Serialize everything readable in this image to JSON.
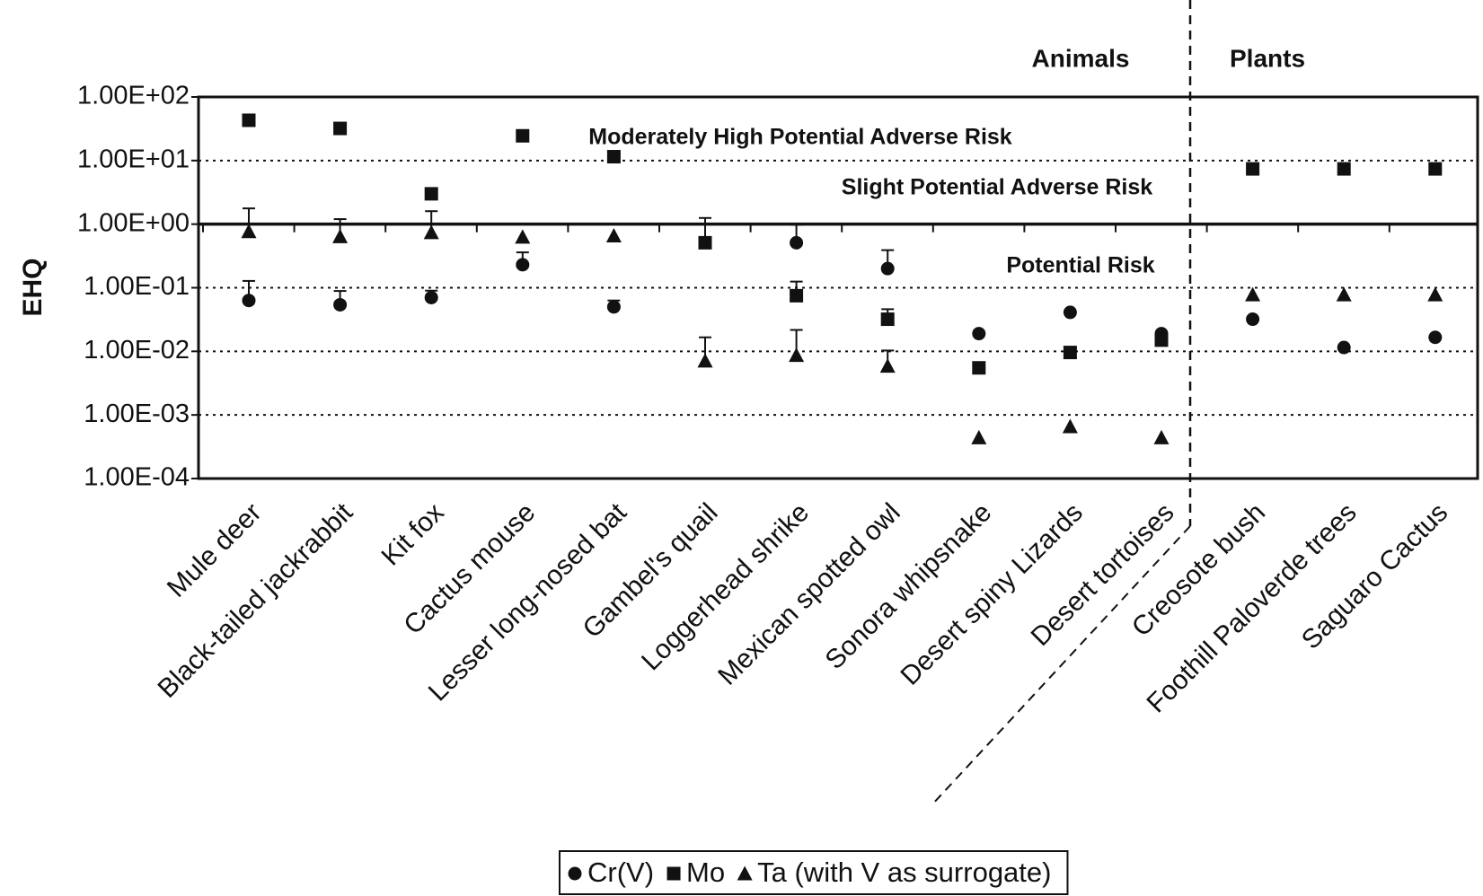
{
  "chart_data": {
    "type": "scatter",
    "y_label": "EHQ",
    "log_y": true,
    "categories": [
      "Mule deer",
      "Black-tailed jackrabbit",
      "Kit fox",
      "Cactus mouse",
      "Lesser long-nosed bat",
      "Gambel's quail",
      "Loggerhead shrike",
      "Mexican spotted owl",
      "Sonora whipsnake",
      "Desert spiny Lizards",
      "Desert tortoises",
      "Creosote bush",
      "Foothill Paloverde trees",
      "Saguaro Cactus"
    ],
    "series": [
      {
        "name": "Cr(V)",
        "marker": "circle",
        "color": "#111111",
        "values": [
          0.063,
          0.054,
          0.07,
          0.23,
          0.05,
          null,
          0.51,
          0.2,
          0.019,
          0.041,
          0.019,
          0.032,
          0.0115,
          0.0166
        ],
        "errors": [
          0.065,
          0.035,
          0.02,
          0.13,
          0.013,
          null,
          0.47,
          0.19,
          null,
          null,
          null,
          null,
          null,
          null
        ]
      },
      {
        "name": "Mo",
        "marker": "square",
        "color": "#111111",
        "values": [
          43,
          32,
          3.0,
          24.5,
          11.5,
          0.51,
          0.075,
          0.032,
          0.0055,
          0.0096,
          0.015,
          7.4,
          7.4,
          7.4
        ],
        "errors": [
          null,
          null,
          null,
          null,
          null,
          0.74,
          0.05,
          0.014,
          null,
          null,
          null,
          null,
          null,
          null
        ]
      },
      {
        "name": "Ta (with V as surrogate)",
        "marker": "triangle",
        "color": "#111111",
        "values": [
          0.77,
          0.64,
          0.74,
          0.63,
          0.66,
          0.0071,
          0.0087,
          0.0059,
          0.00044,
          0.00066,
          0.00044,
          0.078,
          0.078,
          0.078
        ],
        "errors": [
          1.0,
          0.56,
          0.86,
          null,
          null,
          0.0095,
          0.013,
          0.0044,
          null,
          null,
          null,
          null,
          null,
          null
        ]
      }
    ],
    "ylim": [
      0.0001,
      100
    ],
    "yticks": [
      {
        "value": 100,
        "label": "1.00E+02"
      },
      {
        "value": 10,
        "label": "1.00E+01"
      },
      {
        "value": 1,
        "label": "1.00E+00"
      },
      {
        "value": 0.1,
        "label": "1.00E-01"
      },
      {
        "value": 0.01,
        "label": "1.00E-02"
      },
      {
        "value": 0.001,
        "label": "1.00E-03"
      },
      {
        "value": 0.0001,
        "label": "1.00E-04"
      }
    ],
    "reference_line": 1,
    "grid": true,
    "legend": "bottom",
    "annotations": [
      "Animals",
      "Plants",
      "Moderately High Potential Adverse Risk",
      "Slight Potential Adverse Risk",
      "Potential Risk"
    ]
  }
}
